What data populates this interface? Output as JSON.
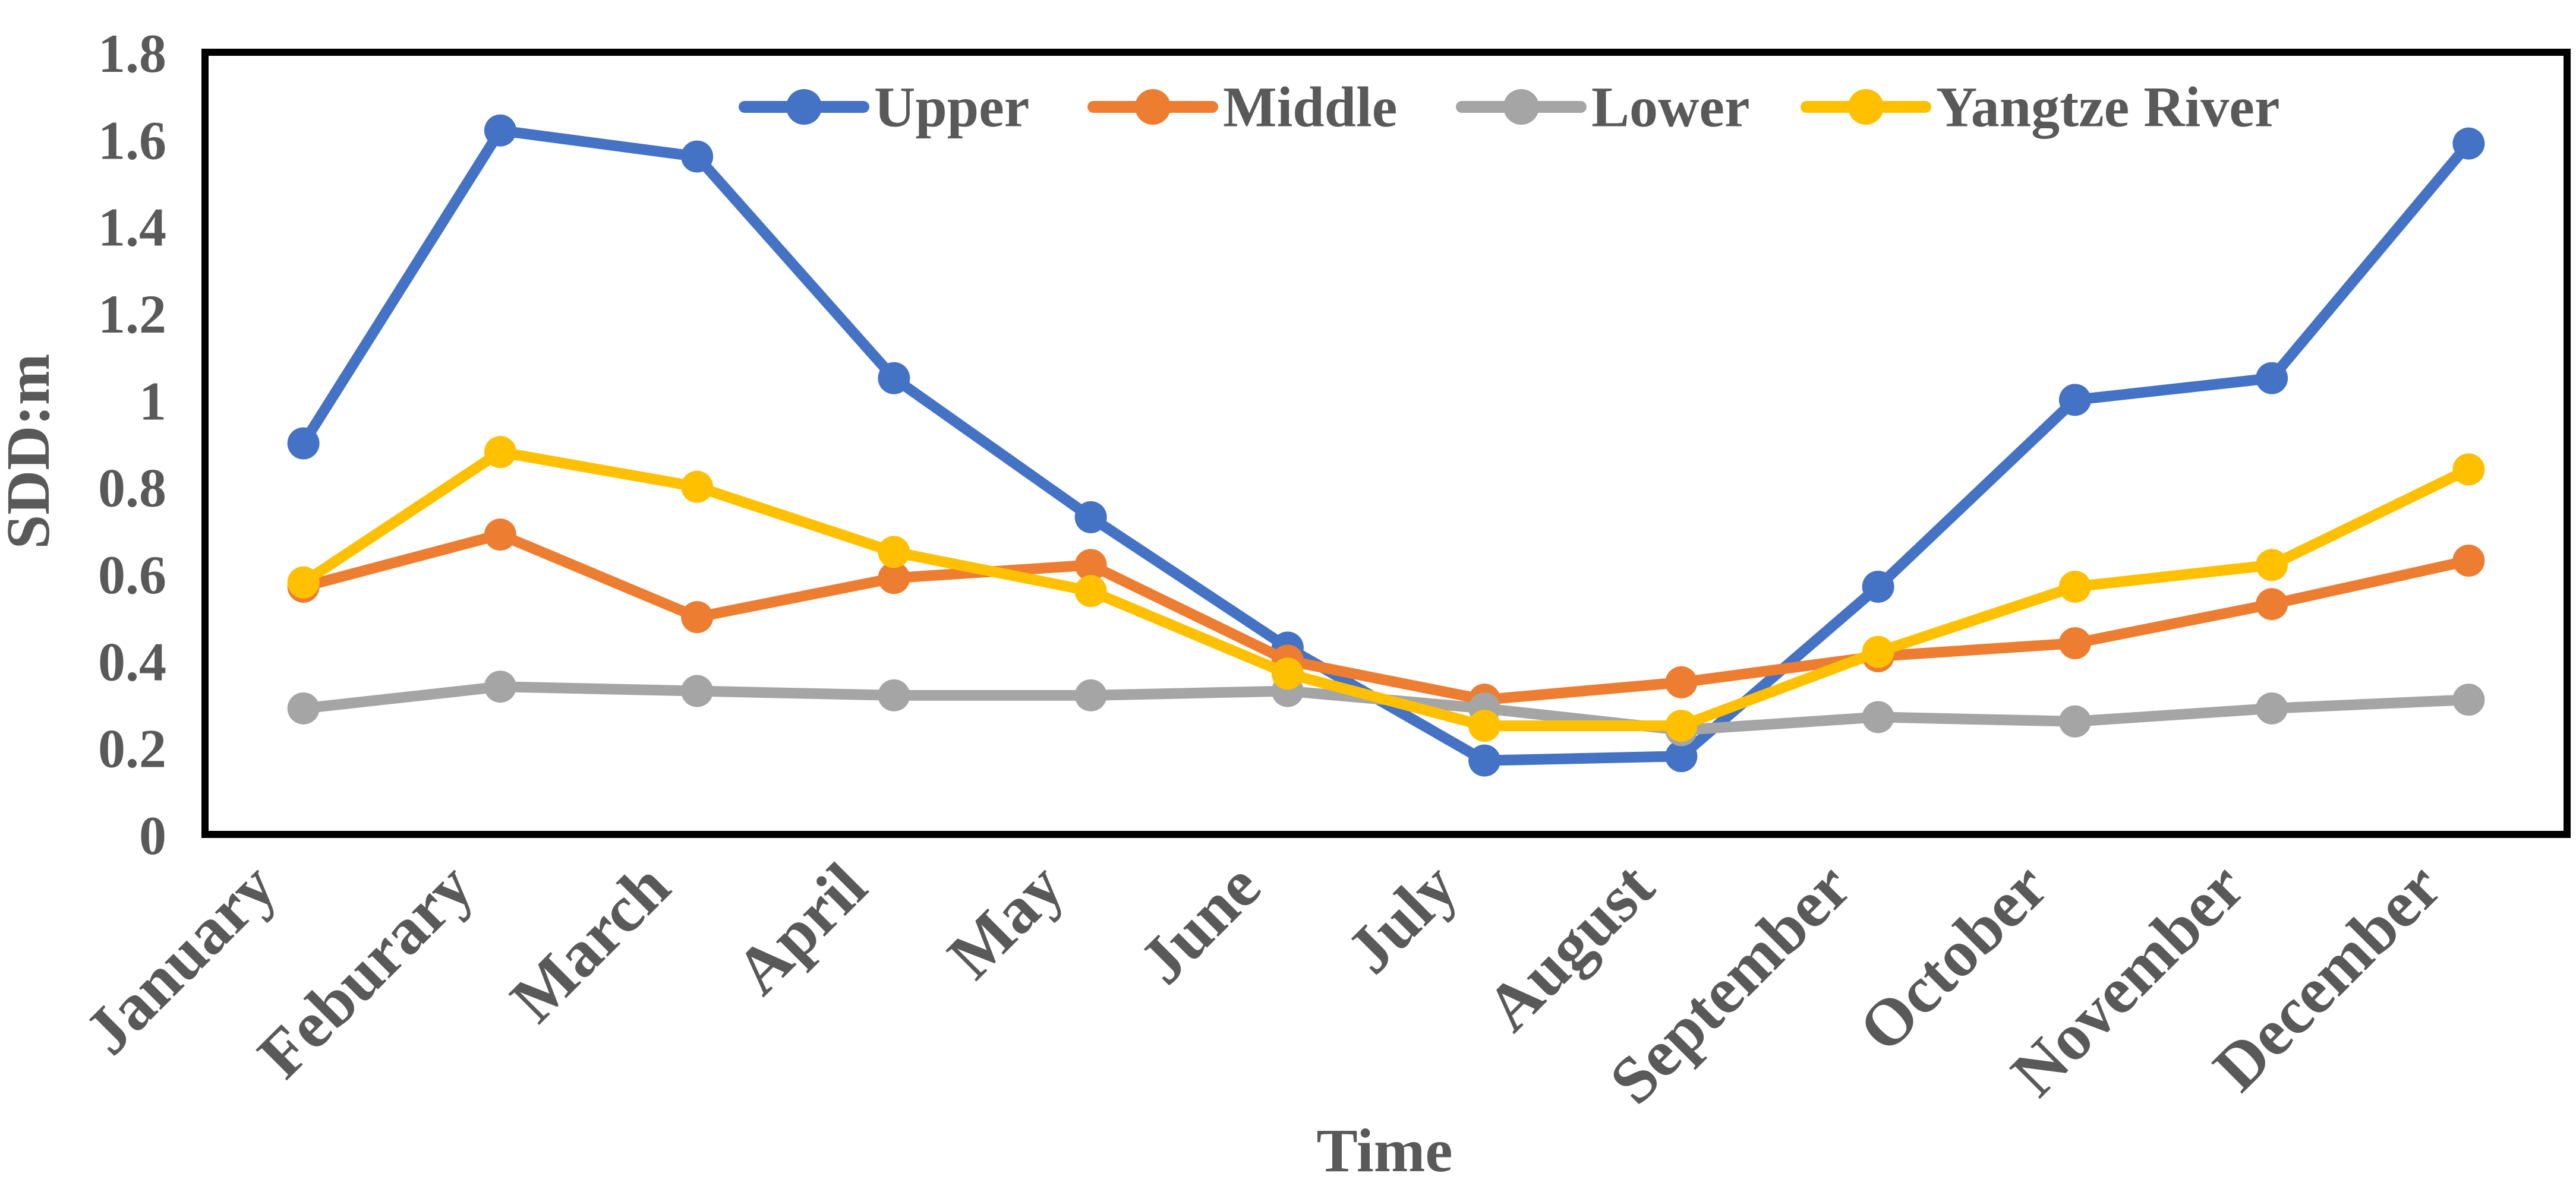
{
  "chart_data": {
    "type": "line",
    "title": "",
    "xlabel": "Time",
    "ylabel": "SDD:m",
    "ylim": [
      0,
      1.8
    ],
    "ytick_labels": [
      "0",
      "0.2",
      "0.4",
      "0.6",
      "0.8",
      "1",
      "1.2",
      "1.4",
      "1.6",
      "1.8"
    ],
    "categories": [
      "January",
      "Feburary",
      "March",
      "April",
      "May",
      "June",
      "July",
      "August",
      "September",
      "October",
      "November",
      "December"
    ],
    "grid": false,
    "legend_position": "top-center-inside",
    "background": "#FFFFFF",
    "text_color": "#595959",
    "axis_color": "#000000",
    "series": [
      {
        "name": "Upper",
        "color": "#4472C4",
        "values": [
          0.9,
          1.62,
          1.56,
          1.05,
          0.73,
          0.43,
          0.17,
          0.18,
          0.57,
          1.0,
          1.05,
          1.59
        ]
      },
      {
        "name": "Middle",
        "color": "#ED7D31",
        "values": [
          0.57,
          0.69,
          0.5,
          0.59,
          0.62,
          0.4,
          0.31,
          0.35,
          0.41,
          0.44,
          0.53,
          0.63
        ]
      },
      {
        "name": "Lower",
        "color": "#A5A5A5",
        "values": [
          0.29,
          0.34,
          0.33,
          0.32,
          0.32,
          0.33,
          0.29,
          0.24,
          0.27,
          0.26,
          0.29,
          0.31
        ]
      },
      {
        "name": "Yangtze River",
        "color": "#FFC000",
        "values": [
          0.58,
          0.88,
          0.8,
          0.65,
          0.56,
          0.37,
          0.25,
          0.25,
          0.42,
          0.57,
          0.62,
          0.84
        ]
      }
    ]
  }
}
